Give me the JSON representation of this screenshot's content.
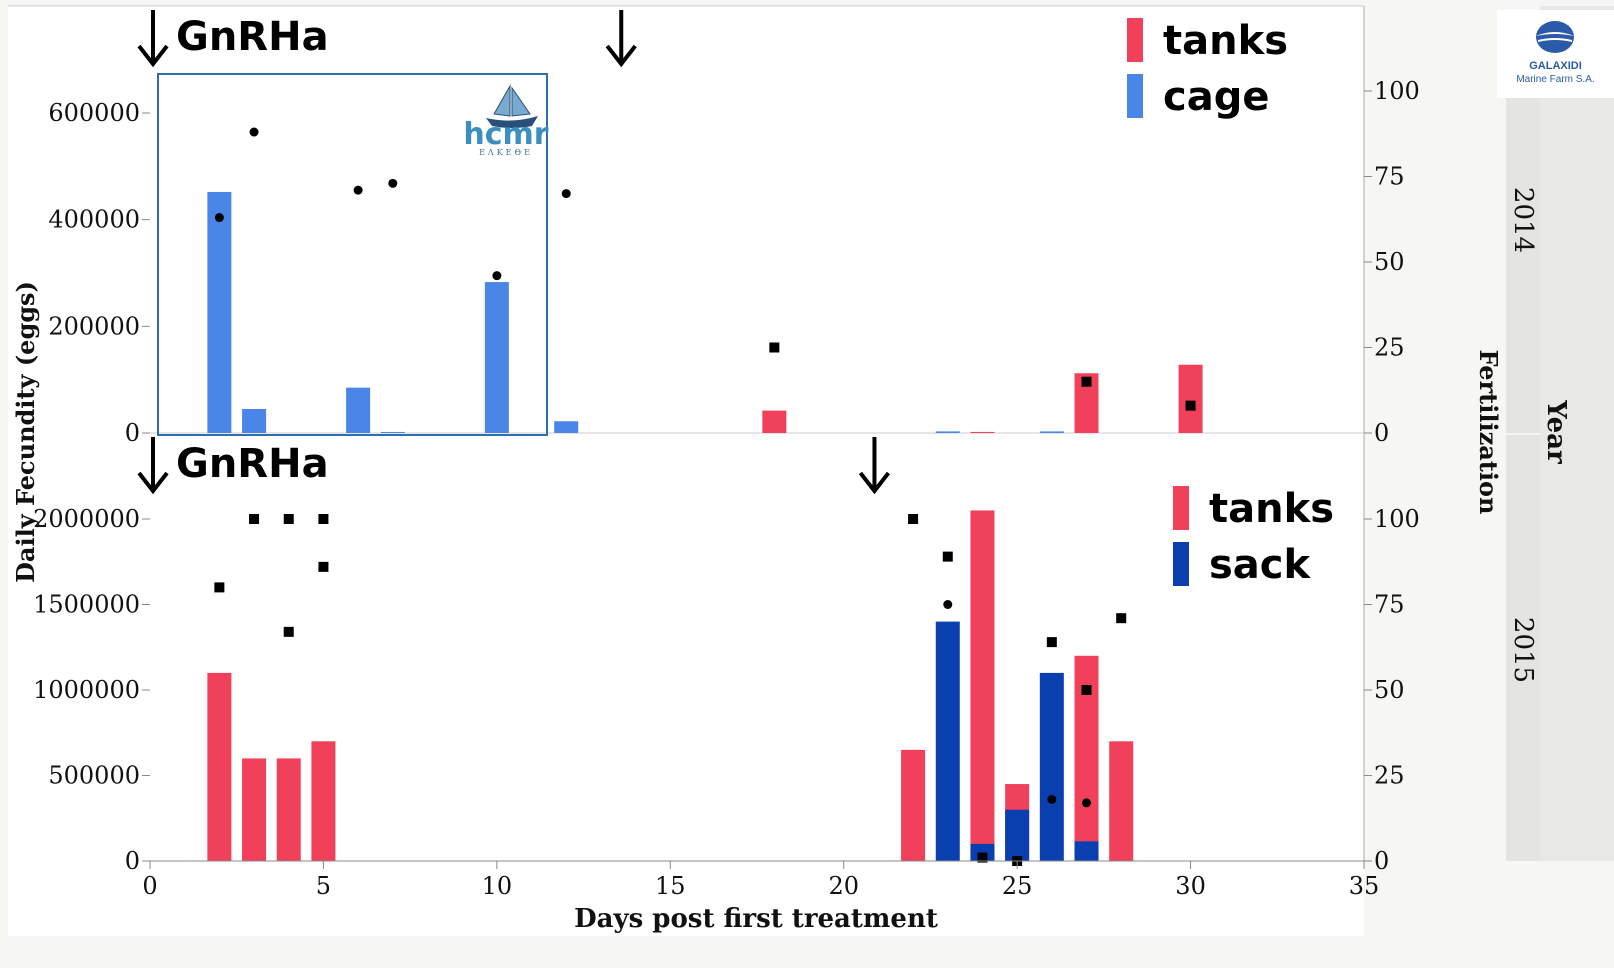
{
  "logos": {
    "galaxidi_name": "GALAXIDI",
    "galaxidi_sub": "Marine Farm S.A.",
    "hcmr_name": "hcmr",
    "hcmr_sub": "ΕΛΚΕΘΕ"
  },
  "colors": {
    "tanks": "#f0405a",
    "cage": "#4a86e8",
    "sack": "#0a3fb0",
    "inset_border": "#2f6fb0",
    "inset_bar": "#7092cc"
  },
  "chart_data": [
    {
      "type": "bar",
      "panel": "2014",
      "ylabel": "Daily Fecundity (eggs)",
      "y2label": "Fertilization",
      "xlabel": "Days post first treatment",
      "xlim": [
        0,
        35
      ],
      "ylim": [
        0,
        600000
      ],
      "y2lim": [
        0,
        100
      ],
      "yticks": [
        "0",
        "200000",
        "400000",
        "600000"
      ],
      "y2ticks": [
        "0",
        "25",
        "50",
        "75",
        "100"
      ],
      "facet": "2014",
      "annotation": "GnRHa",
      "treatment_days": [
        0,
        13.5
      ],
      "legend": [
        "tanks",
        "cage"
      ],
      "series": [
        {
          "name": "tanks",
          "x": [
            18,
            24,
            27,
            30
          ],
          "values": [
            42000,
            2000,
            112000,
            128000
          ]
        },
        {
          "name": "cage",
          "x": [
            2,
            3,
            6,
            7,
            10,
            12,
            23,
            26
          ],
          "values": [
            452000,
            45000,
            85000,
            2000,
            283000,
            22000,
            3000,
            3000
          ]
        }
      ],
      "fertilization_round": {
        "x": [
          2,
          3,
          6,
          7,
          10,
          12
        ],
        "y": [
          63,
          88,
          71,
          73,
          46,
          70
        ]
      },
      "fertilization_square": {
        "x": [
          18,
          27,
          30
        ],
        "y": [
          25,
          15,
          8
        ]
      }
    },
    {
      "type": "bar",
      "panel": "2015",
      "ylabel": "Daily Fecundity (eggs)",
      "y2label": "Fertilization",
      "xlabel": "Days post first treatment",
      "xlim": [
        0,
        35
      ],
      "ylim": [
        0,
        2000000
      ],
      "y2lim": [
        0,
        100
      ],
      "yticks": [
        "0",
        "500000",
        "1000000",
        "1500000",
        "2000000"
      ],
      "y2ticks": [
        "0",
        "25",
        "50",
        "75",
        "100"
      ],
      "xticks": [
        "0",
        "5",
        "10",
        "15",
        "20",
        "25",
        "30",
        "35"
      ],
      "facet": "2015",
      "annotation": "GnRHa",
      "treatment_days": [
        0,
        20.8
      ],
      "legend": [
        "tanks",
        "sack"
      ],
      "series": [
        {
          "name": "tanks",
          "x": [
            2,
            3,
            4,
            5,
            22,
            24,
            25,
            27,
            28
          ],
          "values": [
            1100000,
            600000,
            600000,
            700000,
            650000,
            2050000,
            450000,
            1200000,
            700000
          ]
        },
        {
          "name": "sack",
          "x": [
            23,
            24,
            25,
            26,
            27
          ],
          "values": [
            1400000,
            100000,
            300000,
            1100000,
            115000
          ]
        }
      ],
      "fertilization_square": {
        "x": [
          2,
          3,
          4,
          4,
          5,
          5,
          22,
          23,
          24,
          25,
          26,
          27,
          28
        ],
        "y": [
          80,
          100,
          100,
          67,
          100,
          86,
          100,
          89,
          1,
          0,
          64,
          50,
          71
        ]
      },
      "fertilization_round": {
        "x": [
          23,
          26,
          27
        ],
        "y": [
          75,
          18,
          17
        ]
      }
    }
  ],
  "facet_label": "Year"
}
